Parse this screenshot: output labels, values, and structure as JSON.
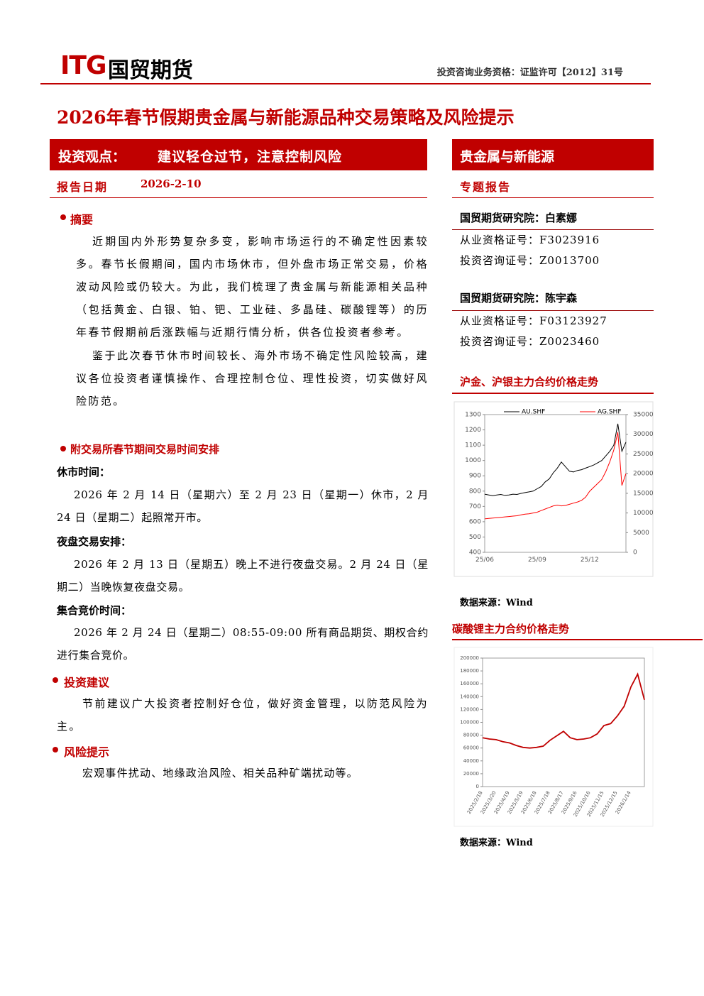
{
  "header": {
    "logo_mark": "ITG",
    "logo_name": "国贸期货",
    "qualification": "投资咨询业务资格：证监许可【2012】31号"
  },
  "title": "2026年春节假期贵金属与新能源品种交易策略及风险提示",
  "viewpoint": {
    "label": "投资观点：",
    "text": "建议轻仓过节，注意控制风险"
  },
  "report_date": {
    "label": "报告日期",
    "value": "2026-2-10"
  },
  "sidebar": {
    "category": "贵金属与新能源",
    "report_type": "专题报告",
    "analysts": [
      {
        "name": "国贸期货研究院：白素娜",
        "license": "从业资格证号：F3023916",
        "consult": "投资咨询证号：Z0013700"
      },
      {
        "name": "国贸期货研究院：陈宇森",
        "license": "从业资格证号：F03123927",
        "consult": "投资咨询证号：Z0023460"
      }
    ]
  },
  "summary": {
    "heading": "摘要",
    "paragraphs": [
      "近期国内外形势复杂多变，影响市场运行的不确定性因素较多。春节长假期间，国内市场休市，但外盘市场正常交易，价格波动风险或仍较大。为此，我们梳理了贵金属与新能源相关品种（包括黄金、白银、铂、钯、工业硅、多晶硅、碳酸锂等）的历年春节假期前后涨跌幅与近期行情分析，供各位投资者参考。",
      "鉴于此次春节休市时间较长、海外市场不确定性风险较高，建议各位投资者谨慎操作、合理控制仓位、理性投资，切实做好风险防范。"
    ]
  },
  "schedule": {
    "heading": "附交易所春节期间交易时间安排",
    "items": [
      {
        "label": "休市时间：",
        "text": "2026 年 2 月 14 日（星期六）至 2 月 23 日（星期一）休市，2 月 24 日（星期二）起照常开市。"
      },
      {
        "label": "夜盘交易安排：",
        "text": "2026 年 2 月 13 日（星期五）晚上不进行夜盘交易。2 月 24 日（星期二）当晚恢复夜盘交易。"
      },
      {
        "label": "集合竞价时间：",
        "text": "2026 年 2 月 24 日（星期二）08:55-09:00 所有商品期货、期权合约进行集合竞价。"
      }
    ]
  },
  "advice": {
    "heading": "投资建议",
    "text": "节前建议广大投资者控制好仓位，做好资金管理，以防范风险为主。"
  },
  "risk": {
    "heading": "风险提示",
    "text": "宏观事件扰动、地缘政治风险、相关品种矿端扰动等。"
  },
  "chart_data": [
    {
      "type": "line",
      "title": "沪金、沪银主力合约价格走势",
      "source": "数据来源：Wind",
      "categories": [
        "25/06",
        null,
        null,
        null,
        null,
        null,
        null,
        null,
        null,
        null,
        null,
        null,
        null,
        "25/09",
        null,
        null,
        null,
        null,
        null,
        null,
        null,
        null,
        null,
        null,
        null,
        null,
        "25/12",
        null,
        null,
        null,
        null,
        null,
        null,
        null,
        null,
        null
      ],
      "series": [
        {
          "name": "AU.SHF",
          "color": "#000000",
          "values": [
            780,
            775,
            770,
            775,
            778,
            772,
            775,
            780,
            778,
            785,
            790,
            795,
            800,
            815,
            830,
            860,
            880,
            920,
            950,
            990,
            960,
            930,
            925,
            935,
            940,
            950,
            960,
            970,
            985,
            1000,
            1030,
            1060,
            1100,
            1240,
            1060,
            1120
          ]
        },
        {
          "name": "AG.SHF",
          "color": "#ff0000",
          "axis": "y2",
          "values": [
            8500,
            8600,
            8700,
            8800,
            8900,
            9000,
            9100,
            9200,
            9300,
            9500,
            9700,
            9800,
            10000,
            10200,
            10600,
            11000,
            11400,
            11800,
            12000,
            11800,
            11900,
            12200,
            12500,
            12800,
            13200,
            14000,
            15500,
            16500,
            17500,
            18500,
            20500,
            23000,
            26000,
            30500,
            17000,
            20000
          ]
        }
      ],
      "ylim": [
        400,
        1300
      ],
      "yticks": [
        400,
        500,
        600,
        700,
        800,
        900,
        1000,
        1100,
        1200,
        1300
      ],
      "y2lim": [
        0,
        35000
      ],
      "y2ticks": [
        0,
        5000,
        10000,
        15000,
        20000,
        25000,
        30000,
        35000
      ],
      "grid": false,
      "legend": "top"
    },
    {
      "type": "line",
      "title": "碳酸锂主力合约价格走势",
      "source": "数据来源：Wind",
      "color": "#c00000",
      "categories": [
        "2025/2/18",
        null,
        "2025/3/20",
        null,
        "2025/4/19",
        null,
        "2025/5/19",
        null,
        "2025/6/18",
        null,
        "2025/7/18",
        null,
        "2025/8/17",
        null,
        "2025/9/16",
        null,
        "2025/10/16",
        null,
        "2025/11/15",
        null,
        "2025/12/15",
        null,
        "2026/1/14",
        null,
        null
      ],
      "values": [
        76000,
        74000,
        73000,
        70000,
        68000,
        64000,
        61000,
        60000,
        61000,
        63000,
        72000,
        79000,
        86000,
        76000,
        73000,
        74000,
        76000,
        82000,
        95000,
        98000,
        110000,
        125000,
        155000,
        175000,
        135000
      ],
      "ylim": [
        0,
        200000
      ],
      "yticks": [
        0,
        20000,
        40000,
        60000,
        80000,
        100000,
        120000,
        140000,
        160000,
        180000,
        200000
      ],
      "grid": false
    }
  ]
}
